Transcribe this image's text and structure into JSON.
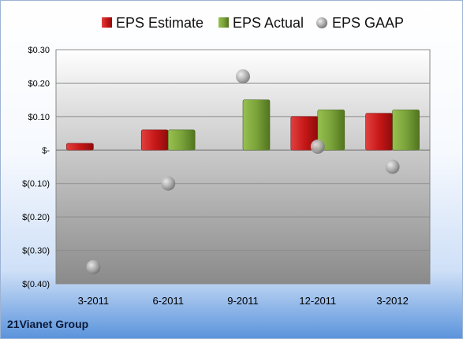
{
  "chart_data": {
    "type": "bar",
    "categories": [
      "3-2011",
      "6-2011",
      "9-2011",
      "12-2011",
      "3-2012"
    ],
    "series": [
      {
        "name": "EPS Estimate",
        "kind": "bar",
        "color": "#cc1f1f",
        "values": [
          0.02,
          0.06,
          null,
          0.1,
          0.11
        ]
      },
      {
        "name": "EPS Actual",
        "kind": "bar",
        "color": "#7aa33a",
        "values": [
          null,
          0.06,
          0.15,
          0.12,
          0.12
        ]
      },
      {
        "name": "EPS GAAP",
        "kind": "scatter",
        "color": "#a8a8a8",
        "values": [
          -0.35,
          -0.1,
          0.22,
          0.01,
          -0.05
        ]
      }
    ],
    "y_ticks": [
      {
        "value": 0.3,
        "label": "$0.30"
      },
      {
        "value": 0.2,
        "label": "$0.20"
      },
      {
        "value": 0.1,
        "label": "$0.10"
      },
      {
        "value": 0.0,
        "label": "$-"
      },
      {
        "value": -0.1,
        "label": "$(0.10)"
      },
      {
        "value": -0.2,
        "label": "$(0.20)"
      },
      {
        "value": -0.3,
        "label": "$(0.30)"
      },
      {
        "value": -0.4,
        "label": "$(0.40)"
      }
    ],
    "ylim": [
      -0.4,
      0.3
    ],
    "grid": true,
    "legend_position": "top"
  },
  "company": "21Vianet Group"
}
